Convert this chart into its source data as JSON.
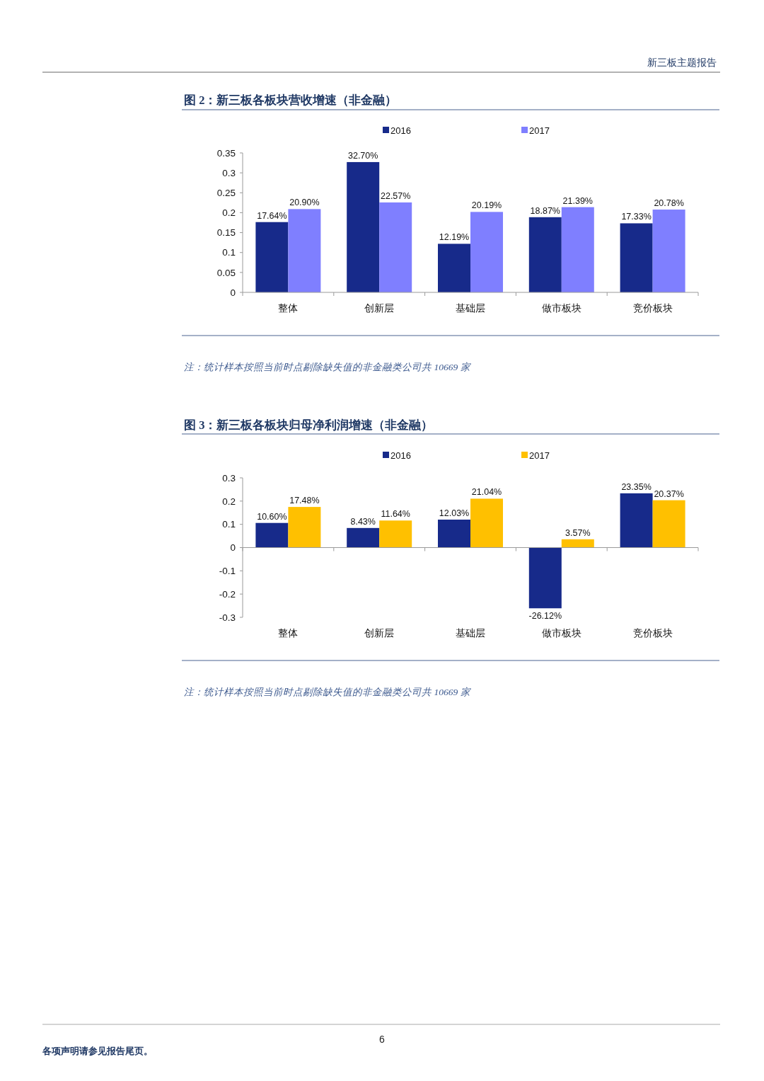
{
  "chart_data": [
    {
      "type": "bar",
      "title": "图 2：新三板各板块营收增速（非金融）",
      "categories": [
        "整体",
        "创新层",
        "基础层",
        "做市板块",
        "竞价板块"
      ],
      "series": [
        {
          "name": "2016",
          "color": "#172a8a",
          "values": [
            0.1764,
            0.327,
            0.1219,
            0.1887,
            0.1733
          ],
          "value_labels": [
            "17.64%",
            "32.70%",
            "12.19%",
            "18.87%",
            "17.33%"
          ]
        },
        {
          "name": "2017",
          "color": "#7f7fff",
          "values": [
            0.209,
            0.2257,
            0.2019,
            0.2139,
            0.2078
          ],
          "value_labels": [
            "20.90%",
            "22.57%",
            "20.19%",
            "21.39%",
            "20.78%"
          ]
        }
      ],
      "ylim": [
        0,
        0.35
      ],
      "yticks": [
        0,
        0.05,
        0.1,
        0.15,
        0.2,
        0.25,
        0.3,
        0.35
      ],
      "legend": "top",
      "annotations": [
        "新三板主题报告",
        "注：统计样本按照当前时点剔除缺失值的非金融类公司共 10669 家"
      ]
    },
    {
      "type": "bar",
      "title": "图 3：新三板各板块归母净利润增速（非金融）",
      "categories": [
        "整体",
        "创新层",
        "基础层",
        "做市板块",
        "竞价板块"
      ],
      "series": [
        {
          "name": "2016",
          "color": "#172a8a",
          "values": [
            0.106,
            0.0843,
            0.1203,
            -0.2612,
            0.2335
          ],
          "value_labels": [
            "10.60%",
            "8.43%",
            "12.03%",
            "-26.12%",
            "23.35%"
          ]
        },
        {
          "name": "2017",
          "color": "#ffc000",
          "values": [
            0.1748,
            0.1164,
            0.2104,
            0.0357,
            0.2037
          ],
          "value_labels": [
            "17.48%",
            "11.64%",
            "21.04%",
            "3.57%",
            "20.37%"
          ]
        }
      ],
      "ylim": [
        -0.3,
        0.3
      ],
      "yticks": [
        -0.3,
        -0.2,
        -0.1,
        0,
        0.1,
        0.2,
        0.3
      ],
      "legend": "top",
      "annotations": [
        "注：统计样本按照当前时点剔除缺失值的非金融类公司共 10669 家",
        "各项声明请参见报告尾页。",
        "6"
      ]
    }
  ]
}
